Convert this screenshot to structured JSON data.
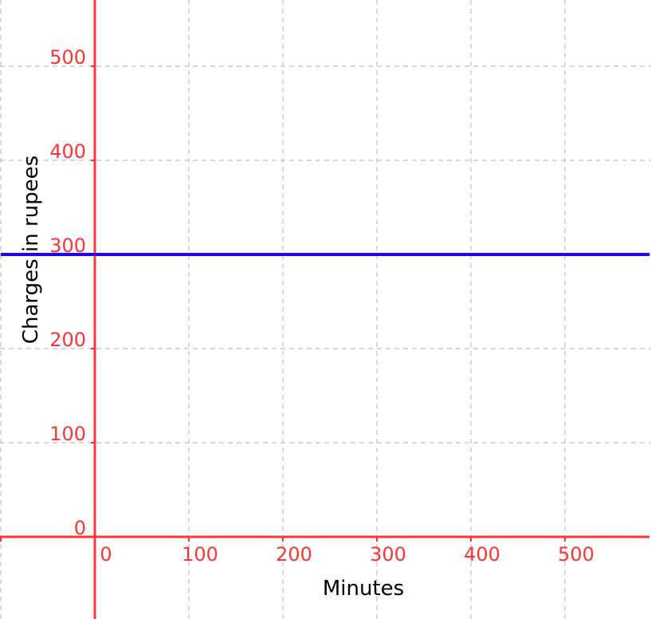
{
  "chart_data": {
    "type": "line",
    "title": "",
    "xlabel": "Minutes",
    "ylabel": "Charges in rupees",
    "xlim": [
      -100,
      590
    ],
    "ylim": [
      -85,
      575
    ],
    "x_ticks": [
      0,
      100,
      200,
      300,
      400,
      500
    ],
    "y_ticks": [
      0,
      100,
      200,
      300,
      400,
      500
    ],
    "grid": true,
    "series": [
      {
        "x": [
          -100,
          590
        ],
        "y": [
          300,
          300
        ],
        "color": "#2200ff"
      }
    ],
    "colors": {
      "axis": "#ff3333",
      "tick_labels": "#ff3333",
      "grid": "#c0c0c0",
      "axis_title": "#000000"
    }
  }
}
